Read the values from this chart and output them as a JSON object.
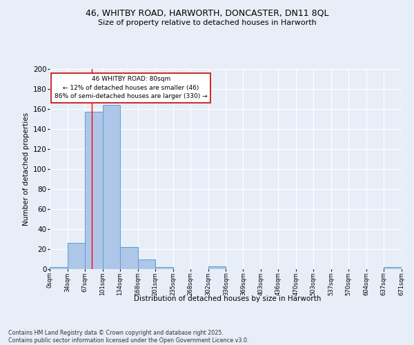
{
  "title": "46, WHITBY ROAD, HARWORTH, DONCASTER, DN11 8QL",
  "subtitle": "Size of property relative to detached houses in Harworth",
  "xlabel": "Distribution of detached houses by size in Harworth",
  "ylabel": "Number of detached properties",
  "bar_edges": [
    0,
    34,
    67,
    101,
    134,
    168,
    201,
    235,
    268,
    302,
    336,
    369,
    403,
    436,
    470,
    503,
    537,
    570,
    604,
    637,
    671
  ],
  "bar_heights": [
    2,
    26,
    157,
    164,
    22,
    10,
    2,
    0,
    0,
    3,
    0,
    0,
    0,
    0,
    0,
    0,
    0,
    0,
    0,
    2
  ],
  "tick_labels": [
    "0sqm",
    "34sqm",
    "67sqm",
    "101sqm",
    "134sqm",
    "168sqm",
    "201sqm",
    "235sqm",
    "268sqm",
    "302sqm",
    "336sqm",
    "369sqm",
    "403sqm",
    "436sqm",
    "470sqm",
    "503sqm",
    "537sqm",
    "570sqm",
    "604sqm",
    "637sqm",
    "671sqm"
  ],
  "bar_color": "#aec6e8",
  "bar_edge_color": "#5a9fd4",
  "red_line_x": 80,
  "ylim": [
    0,
    200
  ],
  "yticks": [
    0,
    20,
    40,
    60,
    80,
    100,
    120,
    140,
    160,
    180,
    200
  ],
  "annotation_text": "46 WHITBY ROAD: 80sqm\n← 12% of detached houses are smaller (46)\n86% of semi-detached houses are larger (330) →",
  "annotation_box_color": "#ffffff",
  "annotation_box_edge": "#cc0000",
  "bg_color": "#e8eef7",
  "footer_line1": "Contains HM Land Registry data © Crown copyright and database right 2025.",
  "footer_line2": "Contains public sector information licensed under the Open Government Licence v3.0."
}
